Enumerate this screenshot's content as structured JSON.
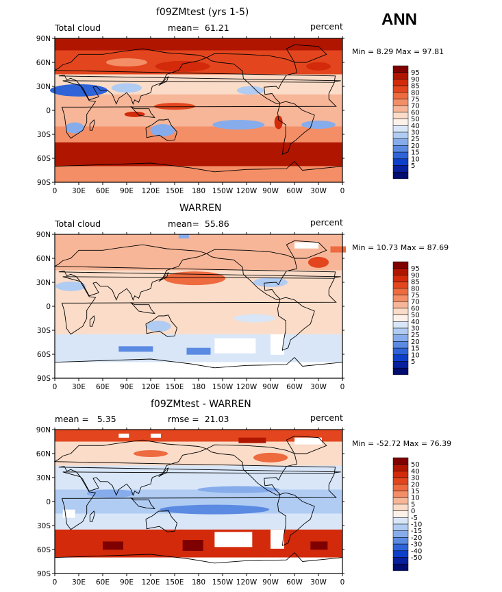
{
  "season": "ANN",
  "x_ticks": [
    "0",
    "30E",
    "60E",
    "90E",
    "120E",
    "150E",
    "180",
    "150W",
    "120W",
    "90W",
    "60W",
    "30W",
    "0"
  ],
  "y_ticks": [
    "90N",
    "60N",
    "30N",
    "0",
    "30S",
    "60S",
    "90S"
  ],
  "panels": [
    {
      "title": "f09ZMtest (yrs 1-5)",
      "left_label": "Total cloud",
      "center_label": "mean=",
      "center_value": "61.21",
      "right_label": "percent",
      "minmax": "Min =    8.29 Max =   97.81",
      "colorbar": [
        "95",
        "90",
        "85",
        "80",
        "75",
        "70",
        "60",
        "50",
        "40",
        "30",
        "25",
        "20",
        "15",
        "10",
        "5"
      ],
      "colors": [
        "#7f0000",
        "#b01500",
        "#d22a0a",
        "#e3461e",
        "#ee6a3f",
        "#f38e66",
        "#f7b698",
        "#fadcc8",
        "#fdf2ea",
        "#d8e6f8",
        "#b0ccf3",
        "#86acec",
        "#5b8ae2",
        "#2f64d8",
        "#0d3fca",
        "#06209e",
        "#000c6e"
      ],
      "style": "model"
    },
    {
      "title": "WARREN",
      "left_label": "Total cloud",
      "center_label": "mean=",
      "center_value": "55.86",
      "right_label": "percent",
      "minmax": "Min =   10.73 Max =   87.69",
      "colorbar": [
        "95",
        "90",
        "85",
        "80",
        "75",
        "70",
        "60",
        "50",
        "40",
        "30",
        "25",
        "20",
        "15",
        "10",
        "5"
      ],
      "colors": [
        "#7f0000",
        "#b01500",
        "#d22a0a",
        "#e3461e",
        "#ee6a3f",
        "#f38e66",
        "#f7b698",
        "#fadcc8",
        "#fdf2ea",
        "#d8e6f8",
        "#b0ccf3",
        "#86acec",
        "#5b8ae2",
        "#2f64d8",
        "#0d3fca",
        "#06209e",
        "#000c6e"
      ],
      "style": "obs"
    },
    {
      "title": "f09ZMtest - WARREN",
      "left_label": "mean =",
      "left_value": "5.35",
      "center_label": "rmse =",
      "center_value": "21.03",
      "right_label": "percent",
      "minmax": "Min =  -52.72 Max =   76.39",
      "colorbar": [
        "50",
        "40",
        "30",
        "20",
        "15",
        "10",
        "5",
        "0",
        "-5",
        "-10",
        "-15",
        "-20",
        "-30",
        "-40",
        "-50"
      ],
      "colors": [
        "#7f0000",
        "#b01500",
        "#d22a0a",
        "#e3461e",
        "#ee6a3f",
        "#f38e66",
        "#f7b698",
        "#fadcc8",
        "#fdf2ea",
        "#d8e6f8",
        "#b0ccf3",
        "#86acec",
        "#5b8ae2",
        "#2f64d8",
        "#0d3fca",
        "#06209e",
        "#000c6e"
      ],
      "style": "diff"
    }
  ]
}
